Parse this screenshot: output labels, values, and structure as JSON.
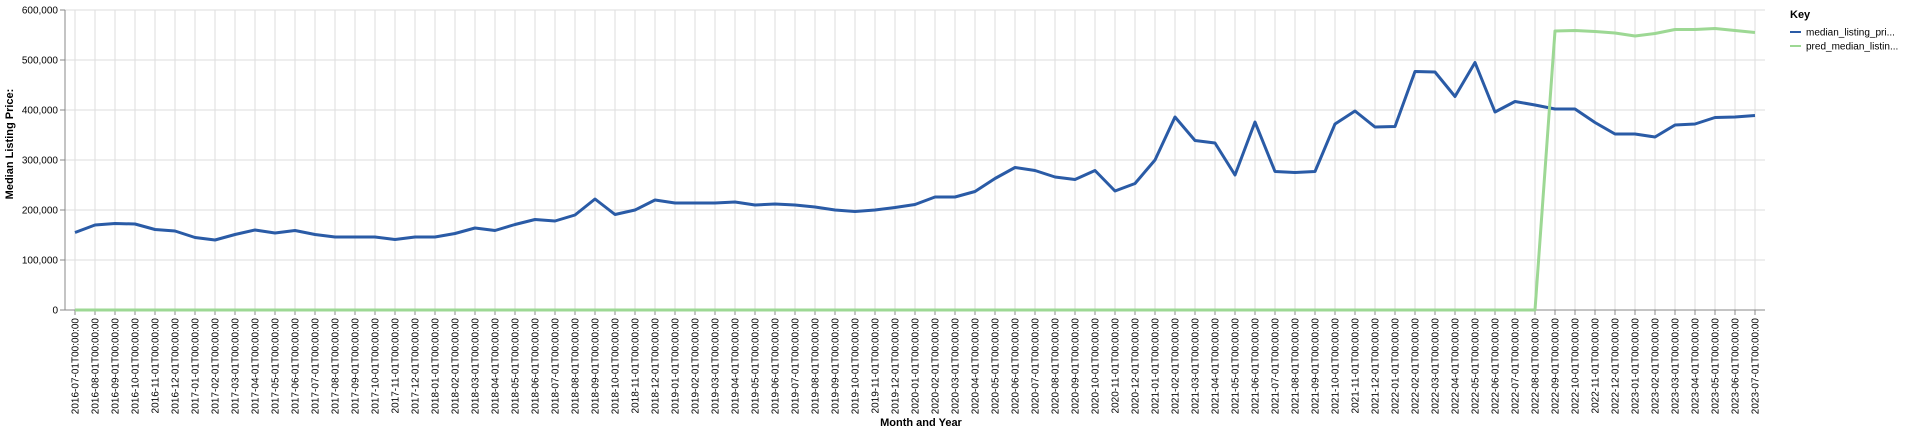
{
  "chart_data": {
    "type": "line",
    "title": "",
    "xlabel": "Month and Year",
    "ylabel": "Median Listing Price:",
    "ylim": [
      0,
      600000
    ],
    "y_ticks": [
      "0",
      "100,000",
      "200,000",
      "300,000",
      "400,000",
      "500,000",
      "600,000"
    ],
    "grid": true,
    "legend_position": "top-right",
    "legend_title": "Key",
    "categories": [
      "2016-07-01T00:00:00",
      "2016-08-01T00:00:00",
      "2016-09-01T00:00:00",
      "2016-10-01T00:00:00",
      "2016-11-01T00:00:00",
      "2016-12-01T00:00:00",
      "2017-01-01T00:00:00",
      "2017-02-01T00:00:00",
      "2017-03-01T00:00:00",
      "2017-04-01T00:00:00",
      "2017-05-01T00:00:00",
      "2017-06-01T00:00:00",
      "2017-07-01T00:00:00",
      "2017-08-01T00:00:00",
      "2017-09-01T00:00:00",
      "2017-10-01T00:00:00",
      "2017-11-01T00:00:00",
      "2017-12-01T00:00:00",
      "2018-01-01T00:00:00",
      "2018-02-01T00:00:00",
      "2018-03-01T00:00:00",
      "2018-04-01T00:00:00",
      "2018-05-01T00:00:00",
      "2018-06-01T00:00:00",
      "2018-07-01T00:00:00",
      "2018-08-01T00:00:00",
      "2018-09-01T00:00:00",
      "2018-10-01T00:00:00",
      "2018-11-01T00:00:00",
      "2018-12-01T00:00:00",
      "2019-01-01T00:00:00",
      "2019-02-01T00:00:00",
      "2019-03-01T00:00:00",
      "2019-04-01T00:00:00",
      "2019-05-01T00:00:00",
      "2019-06-01T00:00:00",
      "2019-07-01T00:00:00",
      "2019-08-01T00:00:00",
      "2019-09-01T00:00:00",
      "2019-10-01T00:00:00",
      "2019-11-01T00:00:00",
      "2019-12-01T00:00:00",
      "2020-01-01T00:00:00",
      "2020-02-01T00:00:00",
      "2020-03-01T00:00:00",
      "2020-04-01T00:00:00",
      "2020-05-01T00:00:00",
      "2020-06-01T00:00:00",
      "2020-07-01T00:00:00",
      "2020-08-01T00:00:00",
      "2020-09-01T00:00:00",
      "2020-10-01T00:00:00",
      "2020-11-01T00:00:00",
      "2020-12-01T00:00:00",
      "2021-01-01T00:00:00",
      "2021-02-01T00:00:00",
      "2021-03-01T00:00:00",
      "2021-04-01T00:00:00",
      "2021-05-01T00:00:00",
      "2021-06-01T00:00:00",
      "2021-07-01T00:00:00",
      "2021-08-01T00:00:00",
      "2021-09-01T00:00:00",
      "2021-10-01T00:00:00",
      "2021-11-01T00:00:00",
      "2021-12-01T00:00:00",
      "2022-01-01T00:00:00",
      "2022-02-01T00:00:00",
      "2022-03-01T00:00:00",
      "2022-04-01T00:00:00",
      "2022-05-01T00:00:00",
      "2022-06-01T00:00:00",
      "2022-07-01T00:00:00",
      "2022-08-01T00:00:00",
      "2022-09-01T00:00:00",
      "2022-10-01T00:00:00",
      "2022-11-01T00:00:00",
      "2022-12-01T00:00:00",
      "2023-01-01T00:00:00",
      "2023-02-01T00:00:00",
      "2023-03-01T00:00:00",
      "2023-04-01T00:00:00",
      "2023-05-01T00:00:00",
      "2023-06-01T00:00:00",
      "2023-07-01T00:00:00"
    ],
    "series": [
      {
        "name": "median_listing_pri...",
        "color": "#2a5ba6",
        "values": [
          155000,
          170000,
          173000,
          172000,
          161000,
          158000,
          145000,
          140000,
          151000,
          160000,
          154000,
          159000,
          151000,
          146000,
          146000,
          146000,
          141000,
          146000,
          146000,
          153000,
          164000,
          159000,
          171000,
          181000,
          178000,
          190000,
          222000,
          191000,
          200000,
          220000,
          214000,
          214000,
          214000,
          216000,
          210000,
          212000,
          210000,
          206000,
          200000,
          197000,
          200000,
          205000,
          211000,
          226000,
          226000,
          237000,
          263000,
          285000,
          279000,
          266000,
          261000,
          279000,
          238000,
          253000,
          300000,
          386000,
          339000,
          334000,
          270000,
          376000,
          277000,
          275000,
          277000,
          372000,
          398000,
          366000,
          367000,
          477000,
          476000,
          427000,
          495000,
          396000,
          417000,
          410000,
          402000,
          402000,
          375000,
          352000,
          352000,
          346000,
          370000,
          372000,
          385000,
          386000,
          389000
        ]
      },
      {
        "name": "pred_median_listin...",
        "color": "#9dd894",
        "values": [
          0,
          0,
          0,
          0,
          0,
          0,
          0,
          0,
          0,
          0,
          0,
          0,
          0,
          0,
          0,
          0,
          0,
          0,
          0,
          0,
          0,
          0,
          0,
          0,
          0,
          0,
          0,
          0,
          0,
          0,
          0,
          0,
          0,
          0,
          0,
          0,
          0,
          0,
          0,
          0,
          0,
          0,
          0,
          0,
          0,
          0,
          0,
          0,
          0,
          0,
          0,
          0,
          0,
          0,
          0,
          0,
          0,
          0,
          0,
          0,
          0,
          0,
          0,
          0,
          0,
          0,
          0,
          0,
          0,
          0,
          0,
          0,
          0,
          0,
          558000,
          559000,
          557000,
          554000,
          548000,
          553000,
          561000,
          561000,
          563000,
          559000,
          555000
        ]
      }
    ]
  }
}
